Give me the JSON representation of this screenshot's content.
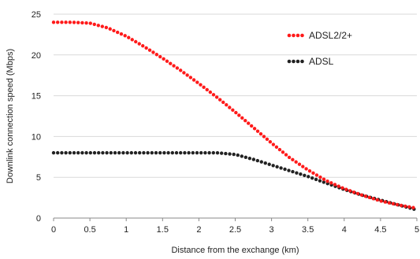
{
  "chart_data": {
    "type": "line",
    "title": "",
    "xlabel": "Distance from the exchange (km)",
    "ylabel": "Downlink connection speed (Mbps)",
    "xlim": [
      0,
      5
    ],
    "ylim": [
      0,
      25
    ],
    "xticks": [
      "0",
      "0.5",
      "1",
      "1.5",
      "2",
      "2.5",
      "3",
      "3.5",
      "4",
      "4.5",
      "5"
    ],
    "yticks": [
      "0",
      "5",
      "10",
      "15",
      "20",
      "25"
    ],
    "grid": "horizontal",
    "legend_position": "top-right",
    "series": [
      {
        "name": "ADSL2/2+",
        "color": "#ff1a1a",
        "marker": "dotted",
        "x": [
          0,
          0.25,
          0.5,
          0.75,
          1.0,
          1.25,
          1.5,
          1.75,
          2.0,
          2.25,
          2.5,
          2.75,
          3.0,
          3.25,
          3.5,
          3.75,
          4.0,
          4.25,
          4.5,
          4.75,
          5.0
        ],
        "y": [
          24,
          24,
          23.9,
          23.3,
          22.3,
          21.0,
          19.6,
          18.1,
          16.5,
          14.8,
          13.0,
          11.1,
          9.2,
          7.4,
          5.9,
          4.6,
          3.6,
          2.8,
          2.1,
          1.6,
          1.2
        ]
      },
      {
        "name": "ADSL",
        "color": "#222222",
        "marker": "dotted",
        "x": [
          0,
          0.25,
          0.5,
          0.75,
          1.0,
          1.25,
          1.5,
          1.75,
          2.0,
          2.25,
          2.5,
          2.75,
          3.0,
          3.25,
          3.5,
          3.75,
          4.0,
          4.25,
          4.5,
          4.75,
          5.0
        ],
        "y": [
          8,
          8,
          8,
          8,
          8,
          8,
          8,
          8,
          8,
          8,
          7.8,
          7.2,
          6.5,
          5.8,
          5.1,
          4.3,
          3.5,
          2.8,
          2.2,
          1.6,
          1.0
        ]
      }
    ]
  }
}
